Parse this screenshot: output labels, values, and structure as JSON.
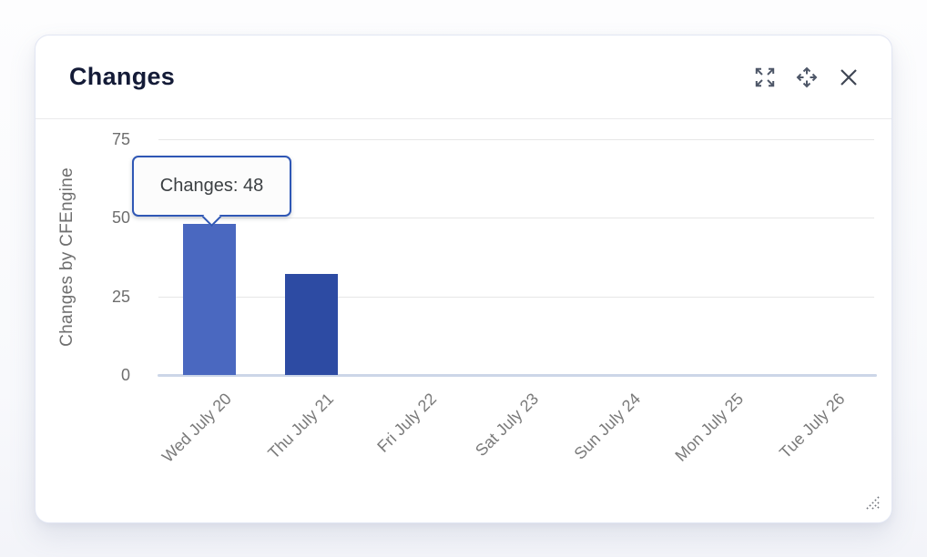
{
  "widget": {
    "title": "Changes",
    "actions": {
      "expand_icon": "expand-arrows",
      "move_icon": "move-arrows",
      "close_icon": "close-x"
    }
  },
  "tooltip": {
    "text": "Changes: 48",
    "target_category": "Wed July 20"
  },
  "chart_data": {
    "type": "bar",
    "categories": [
      "Wed July 20",
      "Thu July 21",
      "Fri July 22",
      "Sat July 23",
      "Sun July 24",
      "Mon July 25",
      "Tue July 26"
    ],
    "values": [
      48,
      32,
      0,
      0,
      0,
      0,
      0
    ],
    "title": "Changes",
    "xlabel": "",
    "ylabel": "Changes by CFEngine",
    "ylim": [
      0,
      75
    ],
    "yticks": [
      0,
      25,
      50,
      75
    ],
    "grid": true,
    "legend": false,
    "bar_color": "#2d4ba3",
    "hovered_bar_color": "#4a68c0",
    "hovered_index": 0
  },
  "colors": {
    "title_text": "#141b37",
    "axis_text": "#6f6f6f",
    "gridline": "#e7e7e7",
    "x_axis_line": "#ccd6e8",
    "tooltip_border": "#2f57b5",
    "tooltip_text": "#3c4043",
    "icon": "#4e5768",
    "card_border": "#e2e6f3"
  }
}
